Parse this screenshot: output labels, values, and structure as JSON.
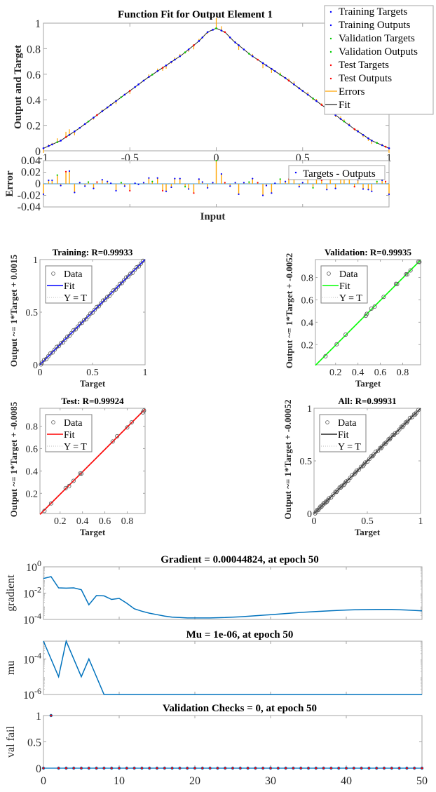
{
  "chart_data": [
    {
      "id": "fit",
      "type": "line",
      "title": "Function Fit for Output Element 1",
      "xlabel": "Input",
      "ylabel": "Output and Target",
      "xlim": [
        -1,
        1
      ],
      "ylim": [
        0,
        1
      ],
      "xticks": [
        "-1",
        "-0.5",
        "0",
        "0.5",
        "1"
      ],
      "yticks": [
        "0",
        "0.2",
        "0.4",
        "0.6",
        "0.8",
        "1"
      ],
      "legend_position": "top-right",
      "legend": [
        "Training Targets",
        "Training Outputs",
        "Validation Targets",
        "Validation Outputs",
        "Test Targets",
        "Test Outputs",
        "Errors",
        "Fit"
      ],
      "fit_curve": {
        "x": [
          -1,
          -0.9,
          -0.8,
          -0.7,
          -0.6,
          -0.5,
          -0.4,
          -0.3,
          -0.2,
          -0.1,
          -0.05,
          0,
          0.05,
          0.1,
          0.2,
          0.3,
          0.4,
          0.5,
          0.6,
          0.7,
          0.8,
          0.9,
          1
        ],
        "y": [
          0.02,
          0.08,
          0.17,
          0.27,
          0.37,
          0.47,
          0.57,
          0.66,
          0.75,
          0.86,
          0.93,
          0.96,
          0.93,
          0.86,
          0.75,
          0.66,
          0.57,
          0.47,
          0.37,
          0.27,
          0.17,
          0.08,
          0.02
        ]
      },
      "colors": {
        "training": "#0000ff",
        "validation": "#00cc00",
        "test": "#ff0000",
        "errors": "#ffa500",
        "fit": "#262626"
      }
    },
    {
      "id": "error",
      "type": "bar",
      "xlabel": "Input",
      "ylabel": "Error",
      "xlim": [
        -1,
        1
      ],
      "ylim": [
        -0.04,
        0.04
      ],
      "yticks": [
        "-0.04",
        "-0.02",
        "0",
        "0.02",
        "0.04"
      ],
      "legend": [
        "Targets - Outputs"
      ],
      "legend_position": "top-right",
      "x": [
        -1,
        -0.97,
        -0.95,
        -0.92,
        -0.9,
        -0.87,
        -0.85,
        -0.82,
        -0.79,
        -0.76,
        -0.74,
        -0.71,
        -0.69,
        -0.66,
        -0.63,
        -0.61,
        -0.58,
        -0.55,
        -0.53,
        -0.5,
        -0.47,
        -0.45,
        -0.42,
        -0.39,
        -0.37,
        -0.34,
        -0.31,
        -0.29,
        -0.26,
        -0.24,
        -0.21,
        -0.18,
        -0.16,
        -0.13,
        -0.1,
        -0.08,
        -0.05,
        -0.02,
        0,
        0.03,
        0.05,
        0.08,
        0.11,
        0.13,
        0.16,
        0.19,
        0.21,
        0.24,
        0.27,
        0.29,
        0.32,
        0.34,
        0.37,
        0.4,
        0.42,
        0.45,
        0.48,
        0.5,
        0.53,
        0.56,
        0.58,
        0.61,
        0.64,
        0.66,
        0.69,
        0.72,
        0.74,
        0.77,
        0.8,
        0.82,
        0.85,
        0.88,
        0.9,
        0.93,
        0.96,
        0.98,
        1
      ],
      "values": [
        -0.018,
        0.006,
        0.006,
        0.015,
        -0.003,
        0.021,
        0.022,
        -0.015,
        0.002,
        -0.004,
        0.003,
        -0.008,
        0.003,
        0.007,
        0.004,
        0.001,
        -0.012,
        0.002,
        -0.004,
        -0.012,
        0.001,
        -0.001,
        0.002,
        0.01,
        0.004,
        0.01,
        -0.012,
        -0.013,
        -0.006,
        0.009,
        0.009,
        -0.005,
        -0.009,
        -0.016,
        0.008,
        0.003,
        -0.007,
        0.002,
        0.04,
        0.017,
        0.002,
        -0.004,
        0.002,
        -0.018,
        0.002,
        0.003,
        0.009,
        0.002,
        -0.02,
        -0.003,
        -0.016,
        0.001,
        0.008,
        0.004,
        0.008,
        0.012,
        -0.005,
        0.002,
        0.01,
        -0.007,
        0.008,
        0.006,
        -0.01,
        0.012,
        -0.008,
        0.01,
        0.008,
        0.008,
        -0.005,
        0.007,
        -0.009,
        -0.01,
        -0.013,
        0.004,
        0.006,
        0.004,
        -0.018
      ]
    },
    {
      "id": "training",
      "type": "scatter",
      "title": "Training: R=0.99933",
      "xlabel": "Target",
      "ylabel": "Output ~= 1*Target + 0.0015",
      "xlim": [
        0,
        1
      ],
      "ylim": [
        0,
        1
      ],
      "xticks": [
        "0",
        "0.5",
        "1"
      ],
      "yticks": [
        "0",
        "0.5",
        "1"
      ],
      "legend": [
        "Data",
        "Fit",
        "Y = T"
      ],
      "legend_position": "top-left",
      "fit_color": "#0000ff",
      "fit": {
        "slope": 1,
        "intercept": 0.0015
      },
      "points": [
        0.01,
        0.02,
        0.04,
        0.06,
        0.08,
        0.1,
        0.12,
        0.14,
        0.16,
        0.18,
        0.2,
        0.22,
        0.24,
        0.26,
        0.28,
        0.3,
        0.32,
        0.34,
        0.36,
        0.38,
        0.4,
        0.42,
        0.44,
        0.46,
        0.48,
        0.5,
        0.52,
        0.54,
        0.56,
        0.58,
        0.6,
        0.62,
        0.64,
        0.66,
        0.68,
        0.7,
        0.72,
        0.74,
        0.76,
        0.78,
        0.8,
        0.82,
        0.84,
        0.86,
        0.88,
        0.9,
        0.92,
        0.94,
        0.96,
        0.98
      ]
    },
    {
      "id": "validation",
      "type": "scatter",
      "title": "Validation: R=0.99935",
      "xlabel": "Target",
      "ylabel": "Output ~= 1*Target + -0.0052",
      "xlim": [
        0.02,
        0.96
      ],
      "ylim": [
        0.02,
        0.96
      ],
      "xticks": [
        "0.2",
        "0.4",
        "0.6",
        "0.8"
      ],
      "yticks": [
        "0.2",
        "0.4",
        "0.6",
        "0.8"
      ],
      "legend": [
        "Data",
        "Fit",
        "Y = T"
      ],
      "legend_position": "top-left",
      "fit_color": "#00ff00",
      "fit": {
        "slope": 1,
        "intercept": -0.0052
      },
      "points": [
        0.11,
        0.21,
        0.29,
        0.47,
        0.48,
        0.52,
        0.55,
        0.63,
        0.74,
        0.75,
        0.83,
        0.84,
        0.87,
        0.94,
        0.95
      ]
    },
    {
      "id": "test",
      "type": "scatter",
      "title": "Test: R=0.99924",
      "xlabel": "Target",
      "ylabel": "Output ~= 1*Target + -0.0085",
      "xlim": [
        0.02,
        0.96
      ],
      "ylim": [
        0.02,
        0.96
      ],
      "xticks": [
        "0.2",
        "0.4",
        "0.6",
        "0.8"
      ],
      "yticks": [
        "0.2",
        "0.4",
        "0.6",
        "0.8"
      ],
      "legend": [
        "Data",
        "Fit",
        "Y = T"
      ],
      "legend_position": "top-left",
      "fit_color": "#ff0000",
      "fit": {
        "slope": 1,
        "intercept": -0.0085
      },
      "points": [
        0.06,
        0.12,
        0.25,
        0.28,
        0.32,
        0.38,
        0.39,
        0.67,
        0.71,
        0.8,
        0.84,
        0.94,
        0.95
      ]
    },
    {
      "id": "all",
      "type": "scatter",
      "title": "All: R=0.99931",
      "xlabel": "Target",
      "ylabel": "Output ~= 1*Target + -0.00052",
      "xlim": [
        0,
        1
      ],
      "ylim": [
        0,
        1
      ],
      "xticks": [
        "0",
        "0.5",
        "1"
      ],
      "yticks": [
        "0",
        "0.5",
        "1"
      ],
      "legend": [
        "Data",
        "Fit",
        "Y = T"
      ],
      "legend_position": "top-left",
      "fit_color": "#262626",
      "fit": {
        "slope": 1,
        "intercept": -0.00052
      },
      "points": [
        0.01,
        0.02,
        0.03,
        0.04,
        0.05,
        0.06,
        0.07,
        0.08,
        0.09,
        0.1,
        0.11,
        0.12,
        0.13,
        0.14,
        0.16,
        0.18,
        0.2,
        0.21,
        0.22,
        0.24,
        0.25,
        0.26,
        0.28,
        0.29,
        0.3,
        0.32,
        0.34,
        0.36,
        0.38,
        0.39,
        0.4,
        0.42,
        0.44,
        0.46,
        0.47,
        0.48,
        0.5,
        0.52,
        0.54,
        0.55,
        0.56,
        0.58,
        0.6,
        0.62,
        0.63,
        0.64,
        0.66,
        0.67,
        0.68,
        0.7,
        0.71,
        0.72,
        0.74,
        0.75,
        0.76,
        0.78,
        0.8,
        0.82,
        0.83,
        0.84,
        0.86,
        0.87,
        0.88,
        0.9,
        0.92,
        0.94,
        0.95,
        0.96,
        0.98
      ]
    },
    {
      "id": "gradient",
      "type": "line",
      "title": "Gradient = 0.00044824, at epoch 50",
      "ylabel": "gradient",
      "yscale": "log",
      "xlim": [
        0,
        50
      ],
      "ylim": [
        0.0001,
        1
      ],
      "yticks": [
        "10^0",
        "10^-2",
        "10^-4"
      ],
      "color": "#0072bd",
      "x": [
        0,
        1,
        2,
        3,
        4,
        5,
        6,
        7,
        8,
        9,
        10,
        11,
        12,
        13,
        14,
        15,
        16,
        17,
        18,
        19,
        20,
        22,
        24,
        26,
        28,
        30,
        32,
        34,
        36,
        38,
        40,
        42,
        44,
        46,
        48,
        50
      ],
      "y": [
        0.13,
        0.18,
        0.025,
        0.024,
        0.025,
        0.018,
        0.0013,
        0.0065,
        0.0062,
        0.0033,
        0.004,
        0.0017,
        0.00065,
        0.00042,
        0.0003,
        0.00023,
        0.00018,
        0.00015,
        0.00014,
        0.00013,
        0.00013,
        0.00013,
        0.00014,
        0.00016,
        0.00019,
        0.00023,
        0.00028,
        0.00034,
        0.0004,
        0.00046,
        0.00052,
        0.00056,
        0.00058,
        0.00057,
        0.00052,
        0.00044824
      ]
    },
    {
      "id": "mu",
      "type": "line",
      "title": "Mu = 1e-06, at epoch 50",
      "ylabel": "mu",
      "yscale": "log",
      "xlim": [
        0,
        50
      ],
      "ylim": [
        1e-06,
        0.001
      ],
      "yticks": [
        "10^-4",
        "10^-6"
      ],
      "color": "#0072bd",
      "x": [
        0,
        2,
        3,
        5,
        6,
        8,
        50
      ],
      "y": [
        0.001,
        1e-05,
        0.001,
        1e-05,
        0.0001,
        1e-06,
        1e-06
      ]
    },
    {
      "id": "valfail",
      "type": "scatter",
      "title": "Validation Checks = 0, at epoch 50",
      "ylabel": "val fail",
      "xlim": [
        0,
        50
      ],
      "ylim": [
        0,
        1
      ],
      "xticks": [
        "0",
        "10",
        "20",
        "30",
        "40",
        "50"
      ],
      "yticks": [
        "0",
        "0.5",
        "1"
      ],
      "color": "#0072bd",
      "marker_color": "#ff0000",
      "y": [
        0,
        1,
        0,
        0,
        0,
        0,
        0,
        0,
        0,
        0,
        0,
        0,
        0,
        0,
        0,
        0,
        0,
        0,
        0,
        0,
        0,
        0,
        0,
        0,
        0,
        0,
        0,
        0,
        0,
        0,
        0,
        0,
        0,
        0,
        0,
        0,
        0,
        0,
        0,
        0,
        0,
        0,
        0,
        0,
        0,
        0,
        0,
        0,
        0,
        0,
        0
      ]
    }
  ]
}
